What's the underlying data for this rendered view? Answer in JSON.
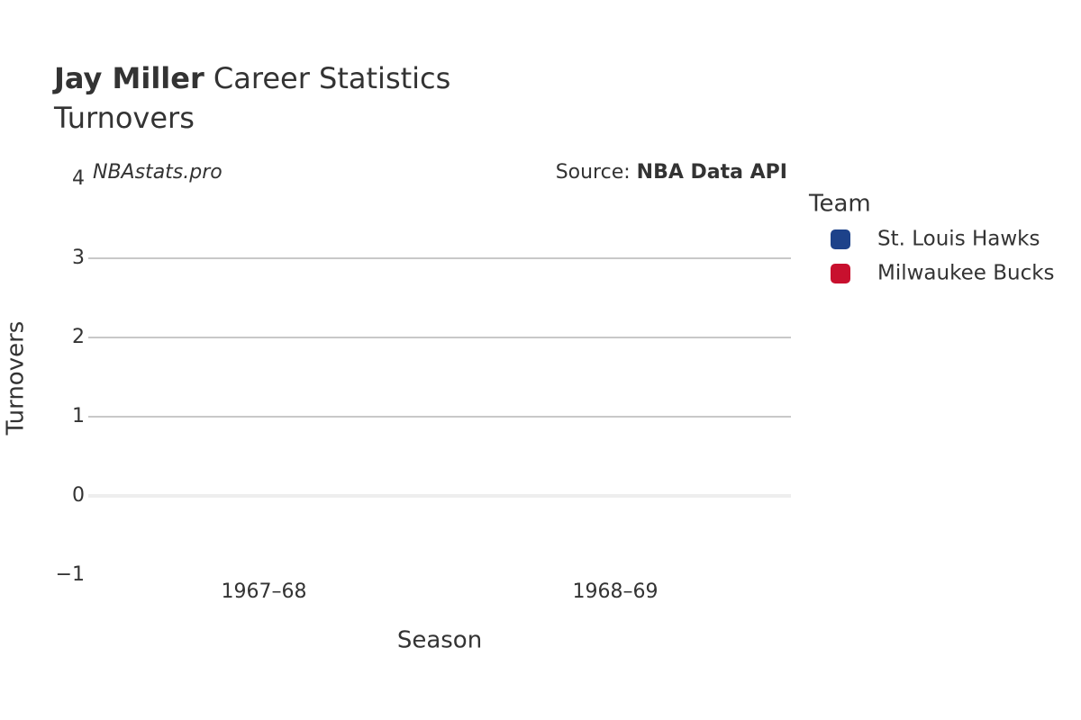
{
  "chart_data": {
    "type": "bar",
    "title": {
      "bold": "Jay Miller",
      "rest": "Career Statistics"
    },
    "subtitle": "Turnovers",
    "watermark": "NBAstats.pro",
    "source": {
      "prefix": "Source: ",
      "name": "NBA Data API"
    },
    "x_label": "Season",
    "y_label": "Turnovers",
    "legend_title": "Team",
    "categories": [
      "1967–68",
      "1968–69"
    ],
    "series": [
      {
        "name": "St. Louis Hawks",
        "color": "#1d428a",
        "values": [
          null,
          null
        ]
      },
      {
        "name": "Milwaukee Bucks",
        "color": "#c8102e",
        "values": [
          null,
          null
        ]
      }
    ],
    "ylim": [
      -1,
      4
    ],
    "yticks": [
      {
        "value": -1,
        "label": "−1"
      },
      0,
      1,
      2,
      3,
      4
    ],
    "grid": true
  }
}
